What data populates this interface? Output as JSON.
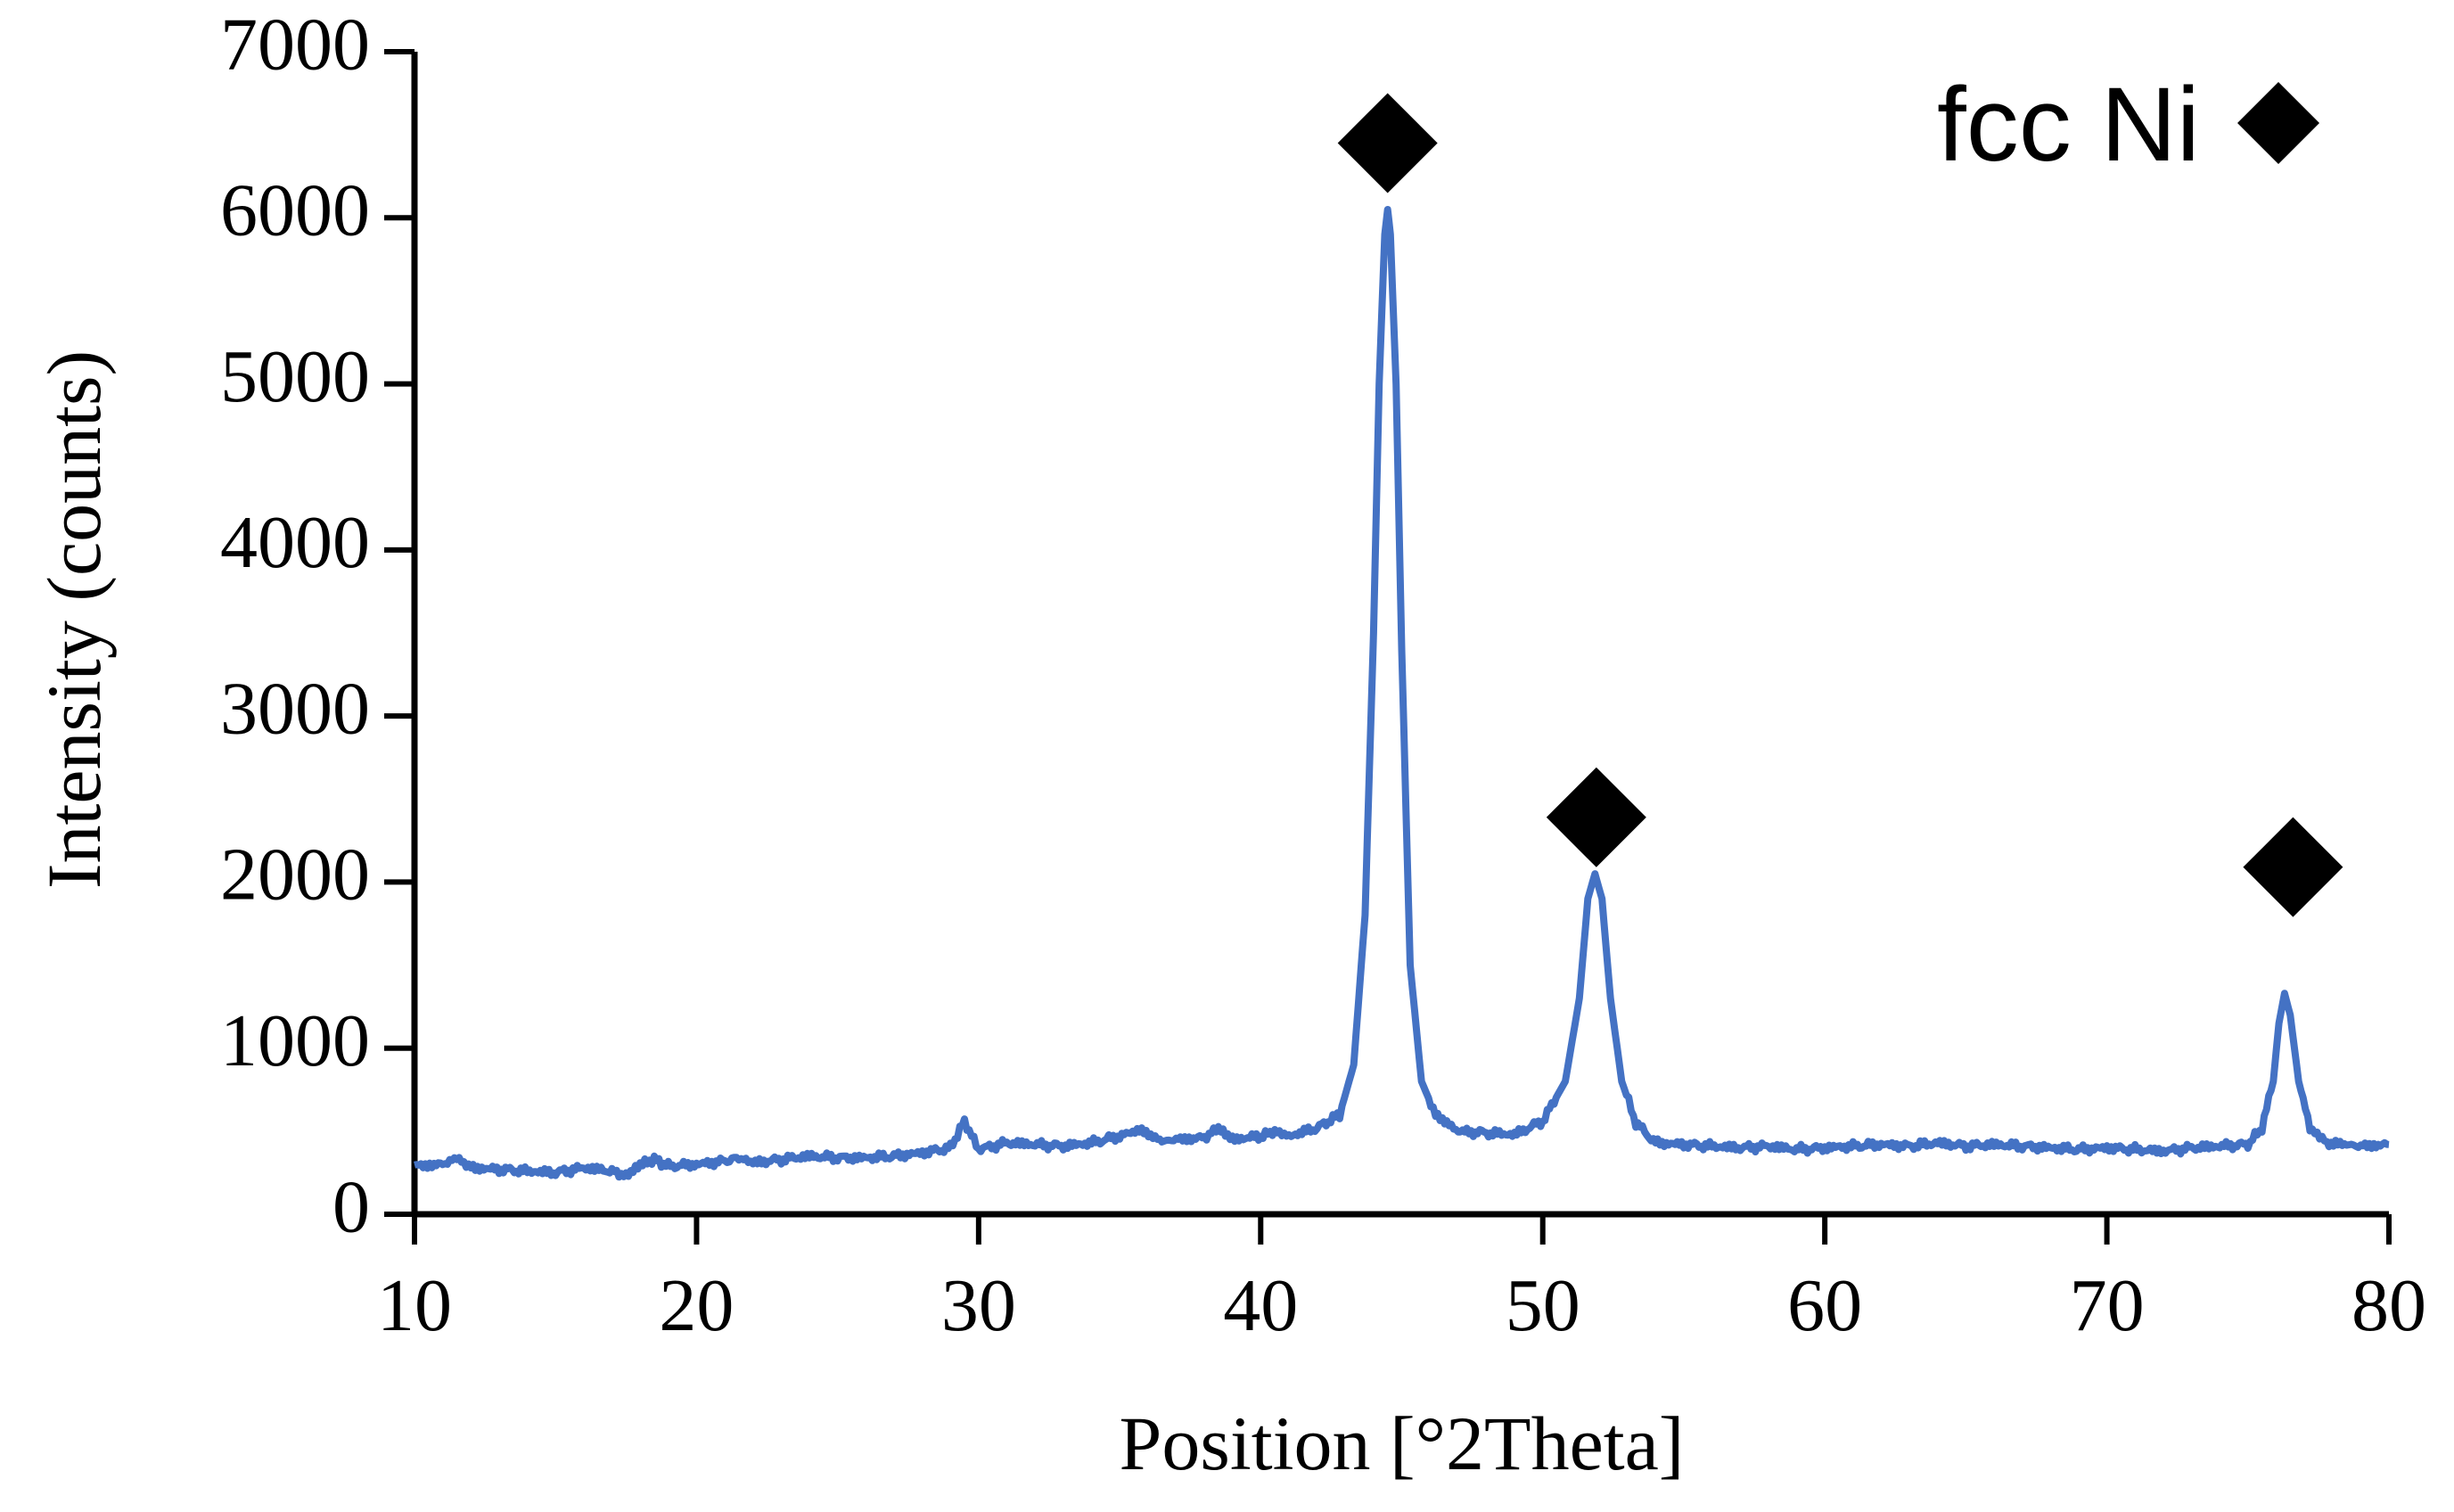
{
  "chart_data": {
    "type": "line",
    "title": "",
    "xlabel": "Position [°2Theta]",
    "ylabel": "Intensity (counts)",
    "xlim": [
      10,
      80
    ],
    "ylim": [
      0,
      7000
    ],
    "x_ticks": [
      10,
      20,
      30,
      40,
      50,
      60,
      70,
      80
    ],
    "y_ticks": [
      0,
      1000,
      2000,
      3000,
      4000,
      5000,
      6000,
      7000
    ],
    "x_tick_labels": [
      "10",
      "20",
      "30",
      "40",
      "50",
      "60",
      "70",
      "80"
    ],
    "y_tick_labels": [
      "0",
      "1000",
      "2000",
      "3000",
      "4000",
      "5000",
      "6000",
      "7000"
    ],
    "grid": false,
    "series_color": "#4472C4",
    "series": [
      {
        "x": [
          10,
          11,
          11.5,
          12,
          13,
          14,
          15,
          16,
          17,
          17.5,
          18,
          18.5,
          19,
          20,
          21,
          21.5,
          22,
          23,
          24,
          25,
          26,
          27,
          28,
          29,
          29.5,
          30,
          31,
          32,
          33,
          34,
          35,
          35.7,
          36.5,
          37,
          38,
          38.5,
          39,
          40,
          40.5,
          41,
          42,
          42.8,
          43.3,
          43.7,
          44,
          44.2,
          44.4,
          44.5,
          44.6,
          44.8,
          45,
          45.3,
          45.7,
          46.2,
          47,
          48,
          49,
          50,
          50.8,
          51.3,
          51.6,
          51.85,
          52.1,
          52.4,
          52.8,
          53.3,
          54,
          55,
          56,
          57,
          58,
          59,
          60,
          61,
          62,
          63,
          64,
          65,
          66,
          67,
          68,
          69,
          70,
          71,
          72,
          73,
          74,
          75,
          75.5,
          75.9,
          76.1,
          76.3,
          76.5,
          76.8,
          77.2,
          77.8,
          78.5,
          79,
          80
        ],
        "y": [
          290,
          300,
          340,
          280,
          270,
          260,
          250,
          280,
          260,
          230,
          300,
          330,
          290,
          300,
          320,
          340,
          310,
          330,
          350,
          340,
          340,
          350,
          370,
          400,
          560,
          390,
          430,
          420,
          410,
          430,
          470,
          510,
          440,
          450,
          460,
          520,
          450,
          470,
          500,
          470,
          520,
          600,
          900,
          1800,
          3500,
          5000,
          5900,
          6050,
          5900,
          5000,
          3400,
          1500,
          800,
          600,
          500,
          490,
          480,
          560,
          800,
          1300,
          1900,
          2050,
          1900,
          1300,
          800,
          550,
          430,
          420,
          410,
          400,
          410,
          390,
          400,
          410,
          420,
          410,
          430,
          410,
          420,
          410,
          400,
          390,
          400,
          390,
          380,
          400,
          410,
          420,
          520,
          800,
          1150,
          1330,
          1200,
          800,
          520,
          430,
          420,
          410,
          420
        ]
      }
    ],
    "peak_markers": [
      {
        "x": 44.5,
        "y": 6450
      },
      {
        "x": 51.9,
        "y": 2390
      },
      {
        "x": 76.6,
        "y": 2090
      }
    ],
    "legend": {
      "label": "fcc Ni",
      "position": "top-right"
    }
  }
}
